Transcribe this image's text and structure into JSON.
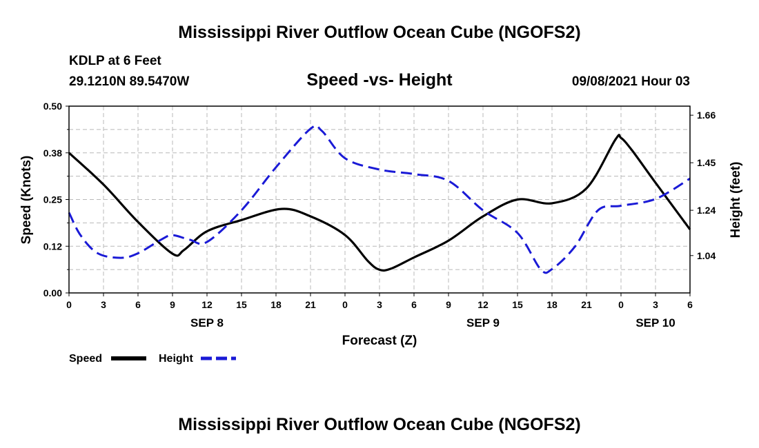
{
  "header": {
    "title": "Mississippi River Outflow Ocean Cube (NGOFS2)",
    "station": "KDLP at 6 Feet",
    "coords": "29.1210N  89.5470W",
    "subtitle": "Speed -vs- Height",
    "datetime": "09/08/2021 Hour 03"
  },
  "footer": {
    "title": "Mississippi River Outflow Ocean Cube (NGOFS2)"
  },
  "legend": {
    "speed_label": "Speed",
    "height_label": "Height"
  },
  "colors": {
    "speed": "#000000",
    "height": "#1a1ad6",
    "grid": "#b8b8b8"
  },
  "chart_data": {
    "type": "line",
    "xlabel": "Forecast (Z)",
    "ylabel_left": "Speed (Knots)",
    "ylabel_right": "Height (feet)",
    "xlim": [
      0,
      54
    ],
    "x_ticks": [
      0,
      3,
      6,
      9,
      12,
      15,
      18,
      21,
      24,
      27,
      30,
      33,
      36,
      39,
      42,
      45,
      48,
      51,
      54
    ],
    "x_tick_labels": [
      "0",
      "3",
      "6",
      "9",
      "12",
      "15",
      "18",
      "21",
      "0",
      "3",
      "6",
      "9",
      "12",
      "15",
      "18",
      "21",
      "0",
      "3",
      "6"
    ],
    "day_labels": [
      {
        "x": 12,
        "text": "SEP 8"
      },
      {
        "x": 36,
        "text": "SEP 9"
      },
      {
        "x": 51,
        "text": "SEP 10"
      }
    ],
    "ylim_left": [
      0,
      0.5
    ],
    "y_ticks_left": [
      0.0,
      0.125,
      0.25,
      0.375,
      0.5
    ],
    "y_tick_labels_left": [
      "0.00",
      "0.12",
      "0.25",
      "0.38",
      "0.50"
    ],
    "ylim_right": [
      0.875,
      1.7
    ],
    "y_ticks_right": [
      1.04,
      1.24,
      1.45,
      1.66
    ],
    "y_tick_labels_right": [
      "1.04",
      "1.24",
      "1.45",
      "1.66"
    ],
    "series": [
      {
        "name": "Speed",
        "axis": "left",
        "style": "solid",
        "x": [
          0,
          3,
          6,
          9,
          10,
          12,
          15,
          18.5,
          21,
          24,
          26,
          27,
          28,
          30,
          33,
          36,
          39,
          42,
          45,
          47.5,
          48,
          49,
          51,
          54
        ],
        "y": [
          0.375,
          0.29,
          0.19,
          0.105,
          0.115,
          0.165,
          0.195,
          0.225,
          0.205,
          0.155,
          0.085,
          0.062,
          0.065,
          0.095,
          0.14,
          0.205,
          0.25,
          0.24,
          0.28,
          0.41,
          0.415,
          0.38,
          0.295,
          0.17
        ]
      },
      {
        "name": "Height",
        "axis": "right",
        "style": "dashed",
        "x": [
          0,
          1,
          2.5,
          4.5,
          6,
          8,
          9,
          10.5,
          12,
          15,
          18,
          21,
          22,
          24,
          27,
          30,
          33,
          36,
          39,
          41,
          42,
          44,
          46,
          48,
          51,
          54
        ],
        "y": [
          1.23,
          1.13,
          1.05,
          1.03,
          1.05,
          1.11,
          1.13,
          1.11,
          1.1,
          1.24,
          1.43,
          1.6,
          1.59,
          1.47,
          1.42,
          1.4,
          1.37,
          1.24,
          1.14,
          0.98,
          0.98,
          1.08,
          1.24,
          1.26,
          1.29,
          1.38
        ]
      }
    ]
  }
}
